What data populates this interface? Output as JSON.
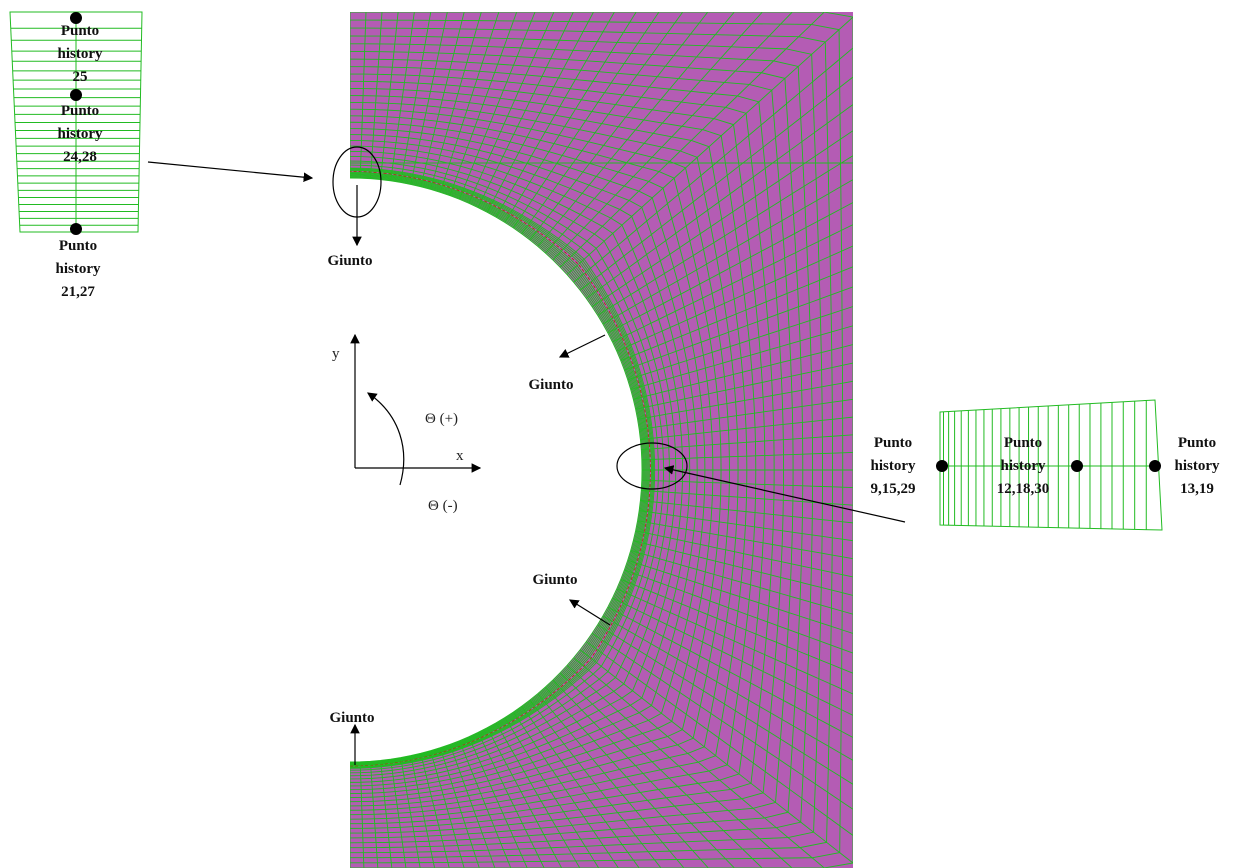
{
  "labels": [
    {
      "lines": [
        "Punto",
        "history",
        "25"
      ]
    },
    {
      "lines": [
        "Punto",
        "history",
        "24,28"
      ]
    },
    {
      "lines": [
        "Punto",
        "history",
        "21,27"
      ]
    },
    {
      "lines": [
        "Punto",
        "history",
        "9,15,29"
      ]
    },
    {
      "lines": [
        "Punto",
        "history",
        "12,18,30"
      ]
    },
    {
      "lines": [
        "Punto",
        "history",
        "13,19"
      ]
    }
  ],
  "joints": [
    "Giunto",
    "Giunto",
    "Giunto",
    "Giunto"
  ],
  "axes": {
    "y": "y",
    "x": "x",
    "theta_pos": "Θ (+)",
    "theta_neg": "Θ (-)"
  }
}
